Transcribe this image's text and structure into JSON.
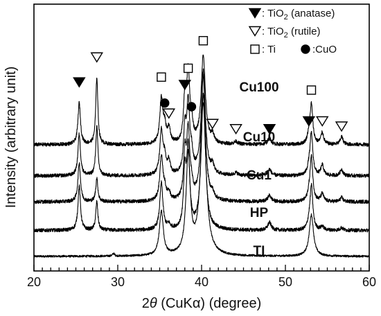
{
  "chart_data": {
    "type": "line",
    "title": "",
    "xlabel": "2θ (CuKα) (degree)",
    "xlabel_parts": {
      "theta_prefix": "2",
      "theta_symbol": "θ",
      "rest": " (CuKα) (degree)"
    },
    "ylabel": "Intensity (arbitrary unit)",
    "xlim": [
      20,
      60
    ],
    "x_ticks": [
      20,
      30,
      40,
      50,
      60
    ],
    "y_ticks_shown": false,
    "grid": false,
    "legend_position": "top-right",
    "legend": [
      {
        "marker": "filled-down-triangle",
        "label": ": TiO",
        "sub": "2",
        "suffix": " (anatase)"
      },
      {
        "marker": "open-down-triangle",
        "label": ": TiO",
        "sub": "2",
        "suffix": " (rutile)"
      },
      {
        "marker": "open-square",
        "label": ": Ti"
      },
      {
        "marker": "filled-circle",
        "label": ":CuO"
      }
    ],
    "series": [
      {
        "name": "TI",
        "baseline": 0.0,
        "noise": 0.02,
        "peaks": [
          [
            29.5,
            0.05,
            0.15
          ],
          [
            35.2,
            0.85,
            0.28
          ],
          [
            38.4,
            1.9,
            0.3
          ],
          [
            40.2,
            2.9,
            0.4
          ],
          [
            53.1,
            0.8,
            0.3
          ]
        ]
      },
      {
        "name": "HP",
        "baseline": 0.5,
        "noise": 0.035,
        "peaks": [
          [
            25.4,
            0.85,
            0.18
          ],
          [
            27.5,
            0.55,
            0.15
          ],
          [
            35.2,
            0.9,
            0.22
          ],
          [
            36.1,
            0.08,
            0.2
          ],
          [
            38.0,
            1.0,
            0.18
          ],
          [
            38.4,
            1.5,
            0.22
          ],
          [
            40.2,
            2.6,
            0.3
          ],
          [
            48.1,
            0.15,
            0.25
          ],
          [
            52.8,
            0.1,
            0.2
          ],
          [
            53.1,
            0.85,
            0.2
          ],
          [
            54.4,
            0.07,
            0.2
          ],
          [
            56.7,
            0.05,
            0.2
          ]
        ]
      },
      {
        "name": "Cu1",
        "baseline": 1.05,
        "noise": 0.035,
        "peaks": [
          [
            25.4,
            0.75,
            0.18
          ],
          [
            27.5,
            0.45,
            0.15
          ],
          [
            35.2,
            0.85,
            0.22
          ],
          [
            35.6,
            0.2,
            0.2
          ],
          [
            36.1,
            0.15,
            0.2
          ],
          [
            38.0,
            0.8,
            0.18
          ],
          [
            38.4,
            1.3,
            0.22
          ],
          [
            38.8,
            0.2,
            0.2
          ],
          [
            40.2,
            2.4,
            0.3
          ],
          [
            41.3,
            0.1,
            0.2
          ],
          [
            48.1,
            0.12,
            0.25
          ],
          [
            52.8,
            0.1,
            0.2
          ],
          [
            53.1,
            0.85,
            0.2
          ],
          [
            54.4,
            0.15,
            0.2
          ],
          [
            56.7,
            0.08,
            0.2
          ]
        ]
      },
      {
        "name": "Cu10",
        "baseline": 1.55,
        "noise": 0.035,
        "peaks": [
          [
            25.4,
            0.8,
            0.18
          ],
          [
            27.5,
            0.95,
            0.15
          ],
          [
            35.2,
            0.85,
            0.22
          ],
          [
            35.6,
            0.3,
            0.2
          ],
          [
            36.1,
            0.25,
            0.2
          ],
          [
            38.0,
            0.8,
            0.18
          ],
          [
            38.4,
            1.3,
            0.22
          ],
          [
            38.8,
            0.3,
            0.2
          ],
          [
            40.2,
            2.0,
            0.3
          ],
          [
            41.3,
            0.15,
            0.2
          ],
          [
            44.1,
            0.05,
            0.25
          ],
          [
            48.1,
            0.12,
            0.25
          ],
          [
            52.8,
            0.12,
            0.2
          ],
          [
            53.1,
            0.8,
            0.2
          ],
          [
            54.4,
            0.2,
            0.2
          ],
          [
            56.7,
            0.12,
            0.2
          ]
        ]
      },
      {
        "name": "Cu100",
        "baseline": 2.15,
        "noise": 0.035,
        "peaks": [
          [
            25.4,
            0.8,
            0.18
          ],
          [
            27.5,
            1.3,
            0.15
          ],
          [
            35.2,
            0.85,
            0.22
          ],
          [
            35.6,
            0.3,
            0.2
          ],
          [
            36.1,
            0.28,
            0.2
          ],
          [
            38.0,
            0.8,
            0.18
          ],
          [
            38.4,
            1.3,
            0.22
          ],
          [
            38.8,
            0.3,
            0.2
          ],
          [
            40.2,
            1.7,
            0.3
          ],
          [
            41.3,
            0.15,
            0.2
          ],
          [
            44.1,
            0.05,
            0.25
          ],
          [
            48.1,
            0.12,
            0.25
          ],
          [
            52.8,
            0.15,
            0.2
          ],
          [
            53.1,
            0.75,
            0.2
          ],
          [
            54.4,
            0.22,
            0.2
          ],
          [
            56.7,
            0.15,
            0.2
          ]
        ]
      }
    ],
    "peak_markers": [
      {
        "type": "filled-down-triangle",
        "x": 25.4,
        "y": 3.35
      },
      {
        "type": "open-down-triangle",
        "x": 27.5,
        "y": 3.83
      },
      {
        "type": "open-square",
        "x": 35.2,
        "y": 3.45
      },
      {
        "type": "filled-circle",
        "x": 35.6,
        "y": 2.95
      },
      {
        "type": "open-down-triangle",
        "x": 36.1,
        "y": 2.75
      },
      {
        "type": "filled-down-triangle",
        "x": 38.0,
        "y": 3.3
      },
      {
        "type": "open-square",
        "x": 38.4,
        "y": 3.62
      },
      {
        "type": "filled-circle",
        "x": 38.8,
        "y": 2.88
      },
      {
        "type": "open-square",
        "x": 40.2,
        "y": 4.15
      },
      {
        "type": "open-down-triangle",
        "x": 41.3,
        "y": 2.55
      },
      {
        "type": "open-down-triangle",
        "x": 44.1,
        "y": 2.45
      },
      {
        "type": "filled-down-triangle",
        "x": 48.1,
        "y": 2.45
      },
      {
        "type": "filled-down-triangle",
        "x": 52.8,
        "y": 2.6
      },
      {
        "type": "open-square",
        "x": 53.1,
        "y": 3.2
      },
      {
        "type": "open-down-triangle",
        "x": 54.4,
        "y": 2.6
      },
      {
        "type": "open-down-triangle",
        "x": 56.7,
        "y": 2.5
      }
    ]
  }
}
